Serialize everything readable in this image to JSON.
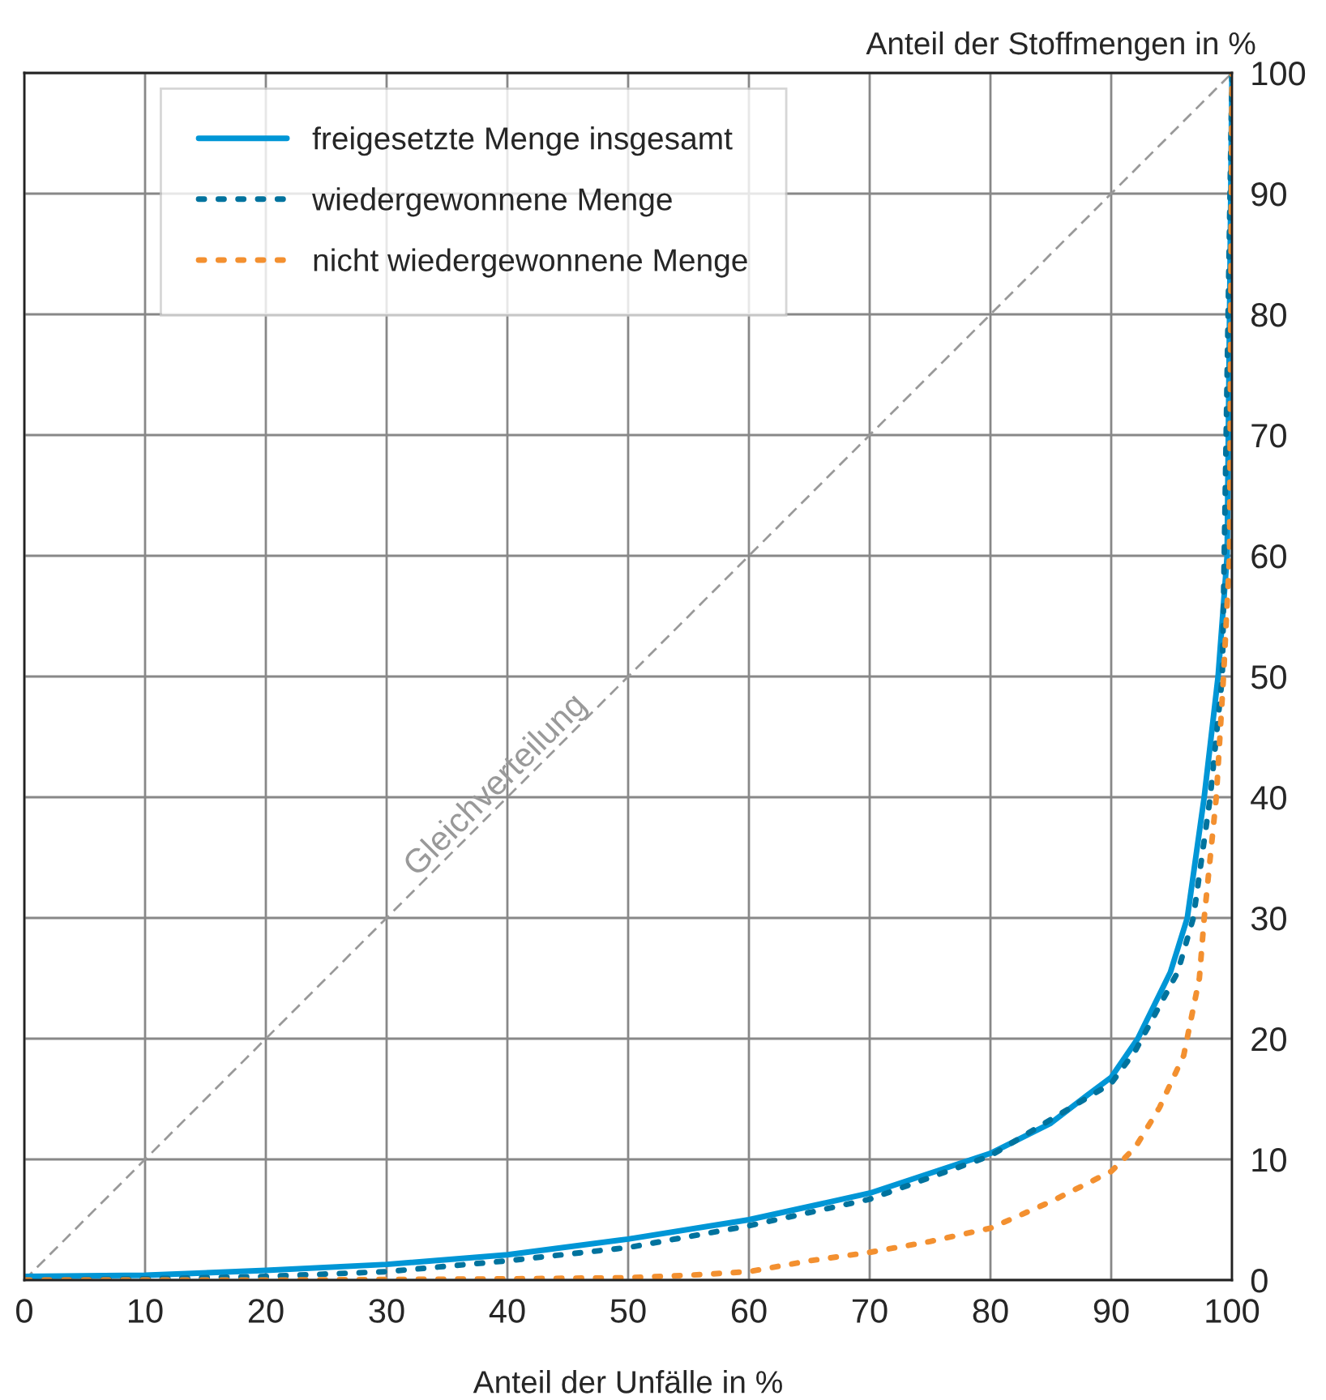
{
  "chart_data": {
    "type": "line",
    "xlabel": "Anteil der Unfälle in %",
    "ylabel": "Anteil der Stoffmengen in %",
    "xlim": [
      0,
      100
    ],
    "ylim": [
      0,
      100
    ],
    "xticks": [
      0,
      10,
      20,
      30,
      40,
      50,
      60,
      70,
      80,
      90,
      100
    ],
    "yticks": [
      0,
      10,
      20,
      30,
      40,
      50,
      60,
      70,
      80,
      90,
      100
    ],
    "grid": true,
    "legend": "top left",
    "marker": "none",
    "annotations": [
      {
        "text": "Gleichverteilung",
        "x": 40,
        "y": 40
      }
    ],
    "series": [
      {
        "color": "#999999",
        "line_style": "dashed",
        "x": [
          0,
          100
        ],
        "values": [
          0,
          100
        ]
      },
      {
        "name": "freigesetzte Menge insgesamt",
        "color": "#0096d6",
        "line_style": "solid",
        "x": [
          0,
          10,
          20,
          30,
          40,
          50,
          60,
          70,
          80,
          85,
          88,
          90,
          92.2,
          94.9,
          96.3,
          97.7,
          98.85,
          99.6,
          100
        ],
        "values": [
          0.3,
          0.4,
          0.8,
          1.3,
          2.1,
          3.4,
          5,
          7.2,
          10.5,
          13,
          15.3,
          16.8,
          20,
          25.5,
          30,
          40,
          50,
          60,
          100
        ]
      },
      {
        "name": "wiedergewonnene Menge",
        "color": "#00739e",
        "line_style": "dotted",
        "x": [
          0,
          10,
          20,
          30,
          40,
          50,
          60,
          70,
          80,
          90,
          92,
          95.5,
          96.8,
          98.2,
          99.2,
          100
        ],
        "values": [
          0,
          0.1,
          0.3,
          0.7,
          1.6,
          2.7,
          4.5,
          6.7,
          10.3,
          16.3,
          19,
          25.5,
          30,
          40,
          50,
          100
        ]
      },
      {
        "name": "nicht wiedergewonnene Menge",
        "color": "#f39030",
        "line_style": "dotted",
        "x": [
          0,
          20,
          40,
          50,
          55,
          60,
          65,
          70,
          75,
          80,
          85,
          90,
          92,
          94,
          96,
          97.3,
          97.7,
          98.7,
          99.3,
          99.8,
          100
        ],
        "values": [
          0,
          0,
          0.1,
          0.2,
          0.4,
          0.7,
          1.6,
          2.3,
          3.2,
          4.3,
          6.5,
          9,
          11,
          14.3,
          18.6,
          25,
          30,
          40,
          50,
          60,
          100
        ]
      }
    ]
  }
}
